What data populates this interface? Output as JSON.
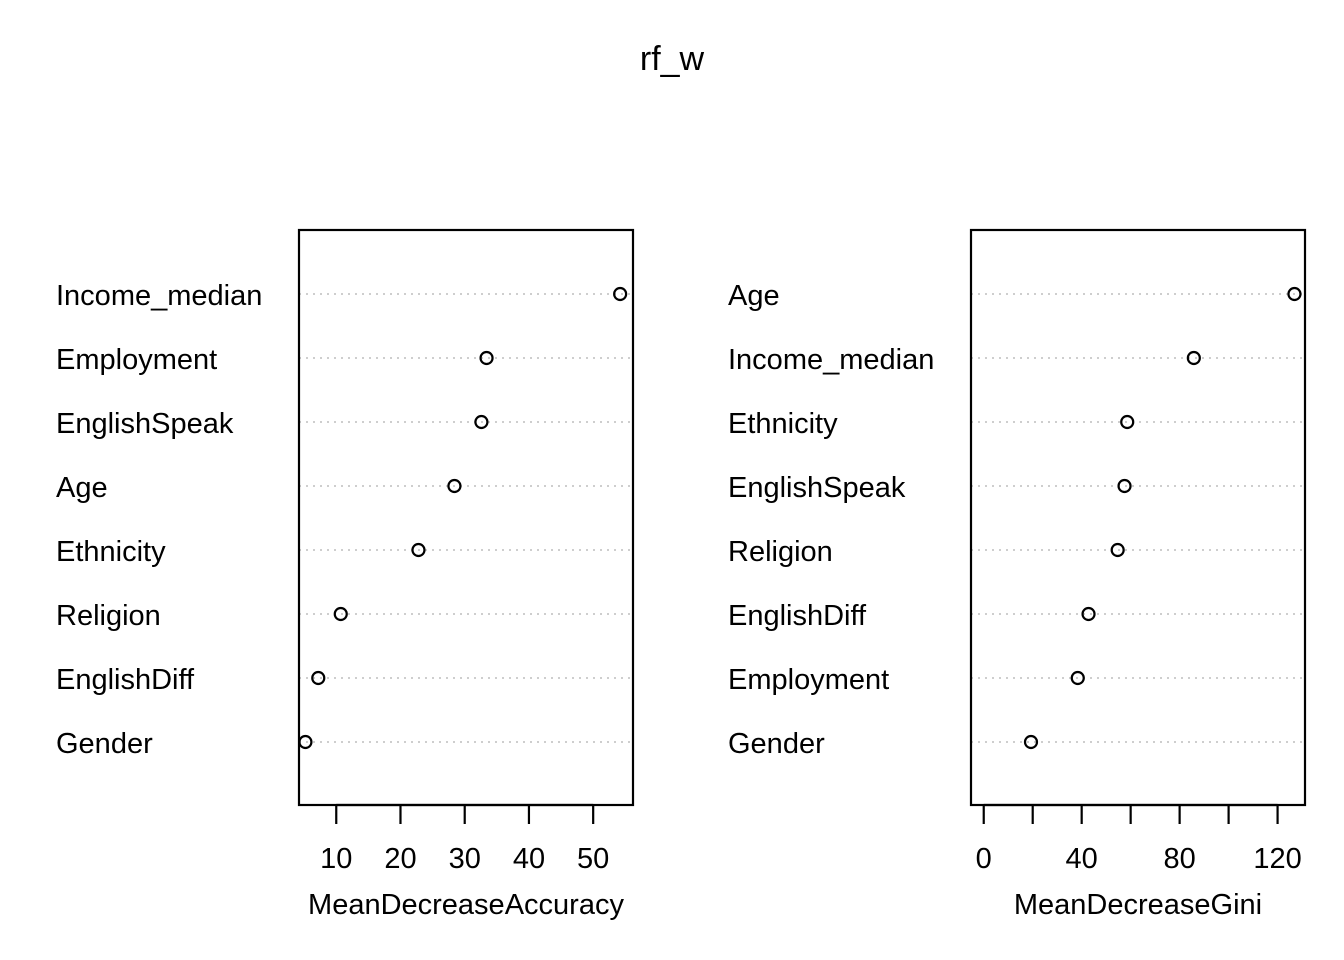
{
  "title": "rf_w",
  "chart_data": [
    {
      "type": "scatter",
      "xlabel": "MeanDecreaseAccuracy",
      "xlim": [
        4.2,
        56.2
      ],
      "xticks": [
        10,
        20,
        30,
        40,
        50
      ],
      "categories": [
        "Income_median",
        "Employment",
        "EnglishSpeak",
        "Age",
        "Ethnicity",
        "Religion",
        "EnglishDiff",
        "Gender"
      ],
      "values": [
        54.2,
        33.4,
        32.6,
        28.4,
        22.8,
        10.7,
        7.2,
        5.2
      ]
    },
    {
      "type": "scatter",
      "xlabel": "MeanDecreaseGini",
      "xlim": [
        -5.2,
        131.2
      ],
      "xticks": [
        0,
        20,
        40,
        60,
        80,
        100,
        120
      ],
      "xtick_labels": [
        "0",
        "",
        "40",
        "",
        "80",
        "",
        "120"
      ],
      "categories": [
        "Age",
        "Income_median",
        "Ethnicity",
        "EnglishSpeak",
        "Religion",
        "EnglishDiff",
        "Employment",
        "Gender"
      ],
      "values": [
        126.9,
        85.8,
        58.6,
        57.5,
        54.7,
        42.8,
        38.4,
        19.3
      ]
    }
  ]
}
